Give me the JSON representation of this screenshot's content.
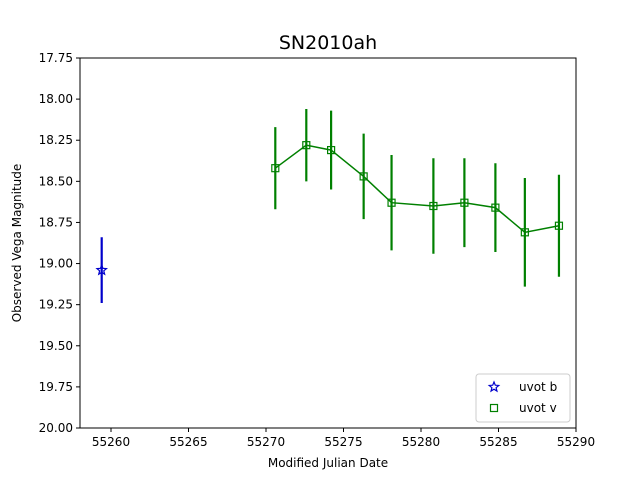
{
  "chart_data": {
    "type": "scatter",
    "title": "SN2010ah",
    "xlabel": "Modified Julian Date",
    "ylabel": "Observed Vega Magnitude",
    "xlim": [
      55258,
      55290
    ],
    "ylim": [
      20.0,
      17.75
    ],
    "y_inverted": true,
    "xticks": [
      "55260",
      "55265",
      "55270",
      "55275",
      "55280",
      "55285",
      "55290"
    ],
    "yticks": [
      "17.75",
      "18.00",
      "18.25",
      "18.50",
      "18.75",
      "19.00",
      "19.25",
      "19.50",
      "19.75",
      "20.00"
    ],
    "grid": false,
    "legend_placement": "lower-right",
    "series": [
      {
        "name": "uvot b",
        "marker": "star",
        "color": "#0000cc",
        "connected": false,
        "x": [
          55259.4
        ],
        "y": [
          19.04
        ],
        "yerr": [
          0.2
        ]
      },
      {
        "name": "uvot v",
        "marker": "square",
        "color": "#008000",
        "connected": true,
        "x": [
          55270.6,
          55272.6,
          55274.2,
          55276.3,
          55278.1,
          55280.8,
          55282.8,
          55284.8,
          55286.7,
          55288.9
        ],
        "y": [
          18.42,
          18.28,
          18.31,
          18.47,
          18.63,
          18.65,
          18.63,
          18.66,
          18.81,
          18.77
        ],
        "yerr": [
          0.25,
          0.22,
          0.24,
          0.26,
          0.29,
          0.29,
          0.27,
          0.27,
          0.33,
          0.31
        ]
      }
    ]
  }
}
